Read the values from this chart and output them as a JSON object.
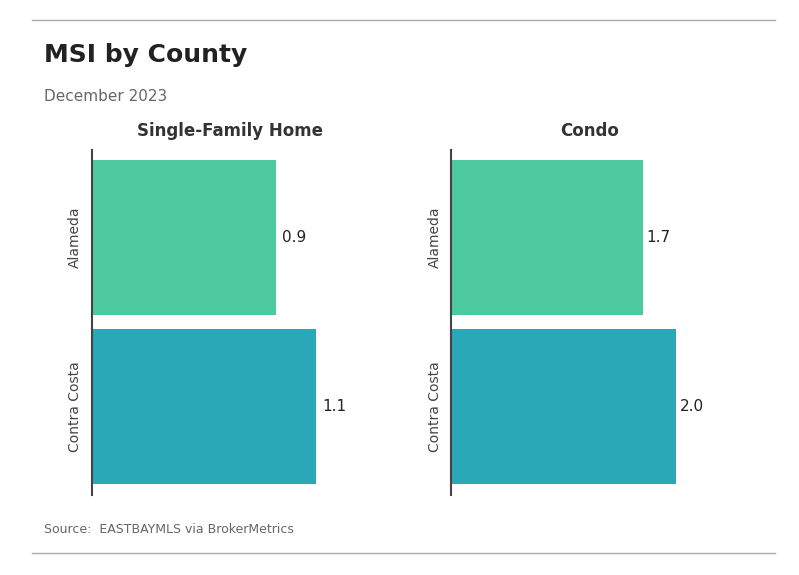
{
  "title": "MSI by County",
  "subtitle": "December 2023",
  "source": "Source:  EASTBAYMLS via BrokerMetrics",
  "panels": [
    {
      "label": "Single-Family Home",
      "categories": [
        "Contra Costa",
        "Alameda"
      ],
      "values": [
        1.1,
        0.9
      ],
      "colors": [
        "#2ba8b8",
        "#4dc9a0"
      ]
    },
    {
      "label": "Condo",
      "categories": [
        "Contra Costa",
        "Alameda"
      ],
      "values": [
        2.0,
        1.7
      ],
      "colors": [
        "#2ba8b8",
        "#4dc9a0"
      ]
    }
  ],
  "background_color": "#ffffff",
  "bar_label_fontsize": 11,
  "panel_title_fontsize": 12,
  "title_fontsize": 18,
  "subtitle_fontsize": 11,
  "source_fontsize": 9,
  "bar_height": 0.92,
  "xlim_sfh": [
    0,
    1.35
  ],
  "xlim_condo": [
    0,
    2.45
  ]
}
